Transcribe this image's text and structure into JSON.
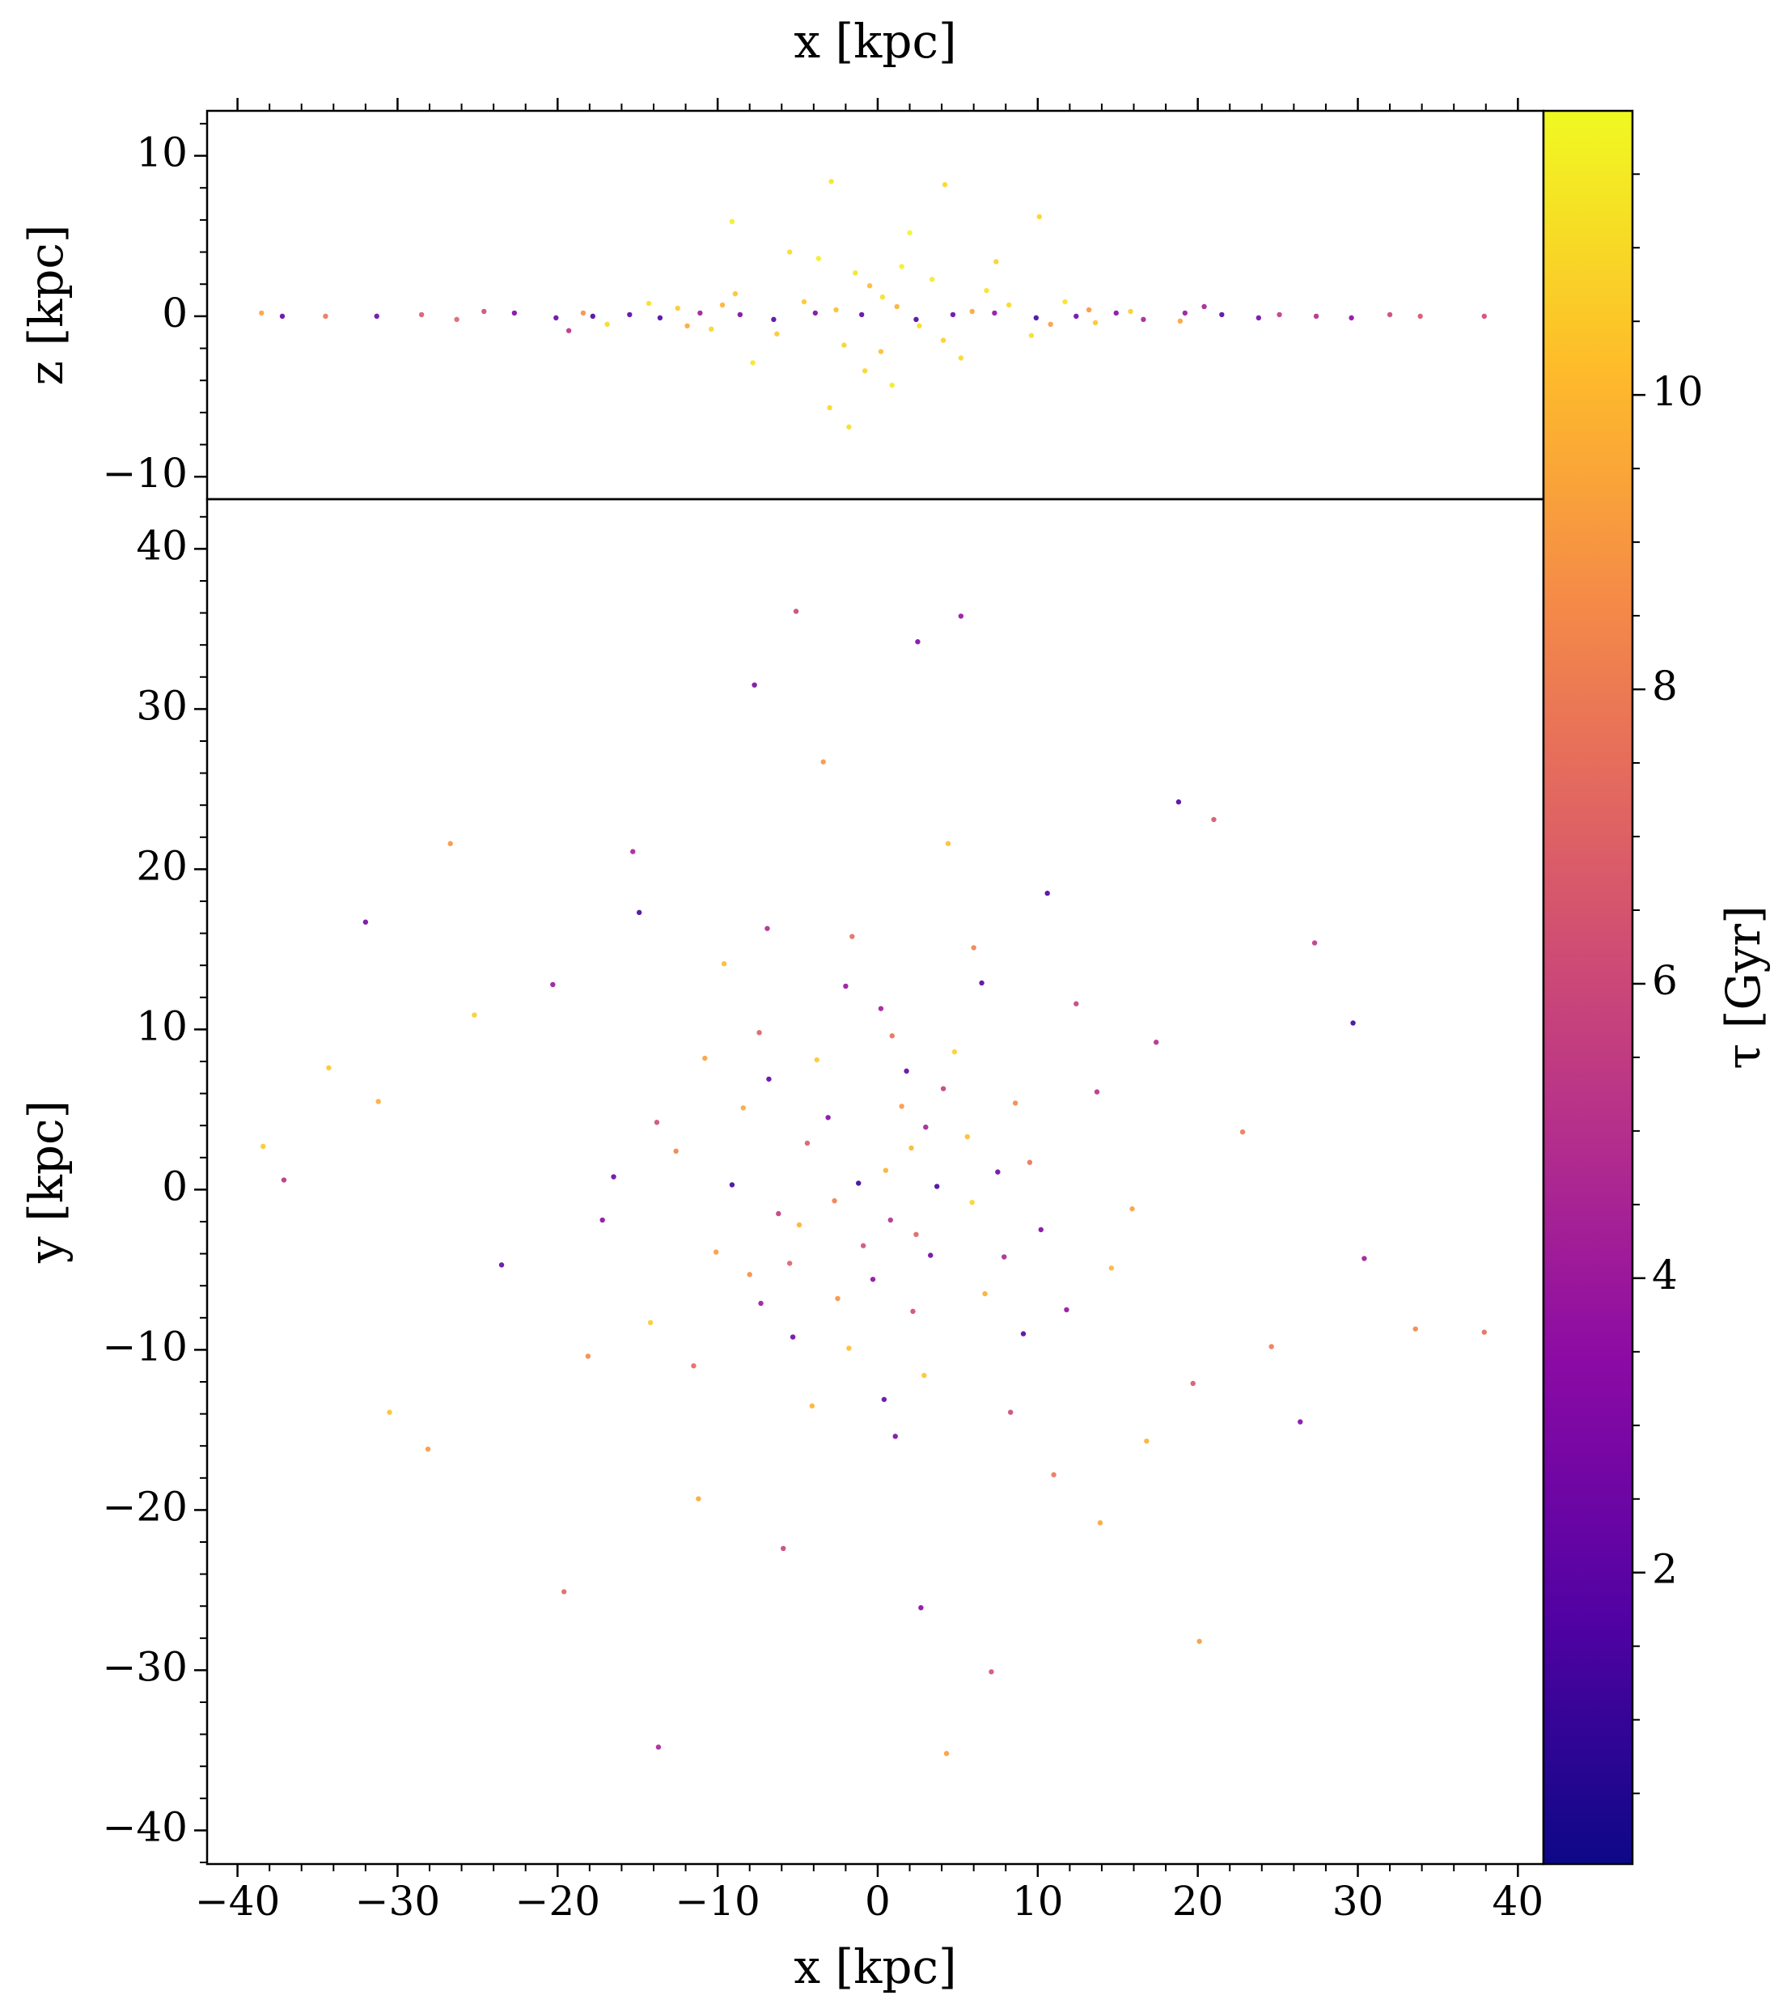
{
  "chart_data": [
    {
      "type": "scatter",
      "xlabel": "x [kpc]",
      "ylabel": "z [kpc]",
      "xlim": [
        -41.9,
        41.6
      ],
      "ylim": [
        -11.4,
        12.8
      ],
      "xticks": [
        -40,
        -30,
        -20,
        -10,
        0,
        10,
        20,
        30,
        40
      ],
      "xminorticks": [
        -38,
        -36,
        -34,
        -32,
        -28,
        -26,
        -24,
        -22,
        -18,
        -16,
        -14,
        -12,
        -8,
        -6,
        -4,
        -2,
        2,
        4,
        6,
        8,
        12,
        14,
        16,
        18,
        22,
        24,
        26,
        28,
        32,
        34,
        36,
        38
      ],
      "yticks": [
        {
          "value": -10,
          "label": "−10"
        },
        0,
        10
      ],
      "yminorticks": [
        -8,
        -6,
        -4,
        -2,
        2,
        4,
        6,
        8,
        12
      ],
      "x": [
        0.3,
        -2.1,
        3.4,
        -4.6,
        5.2,
        1.5,
        -0.8,
        6.8,
        -6.3,
        2.6,
        -1.4,
        4.1,
        -3.7,
        8.2,
        -8.9,
        9.6,
        -10.4,
        11.7,
        -12.5,
        0.9,
        -5.5,
        2.0,
        -3.0,
        7.4,
        -7.8,
        13.6,
        -14.3,
        15.8,
        -16.9,
        0.2,
        -2.6,
        1.2,
        -0.5,
        5.9,
        -9.7,
        10.8,
        -11.9,
        13.2,
        -18.4,
        18.9,
        -1.0,
        2.4,
        -3.9,
        4.7,
        -6.5,
        7.3,
        -8.6,
        9.9,
        -11.1,
        12.4,
        -13.6,
        14.9,
        -15.5,
        16.6,
        -17.8,
        19.2,
        -20.1,
        21.5,
        -22.7,
        23.8,
        -24.6,
        25.1,
        -26.3,
        27.4,
        -28.5,
        29.6,
        -31.3,
        32.0,
        -34.5,
        33.9,
        -37.2,
        37.9,
        -38.5,
        -19.3,
        20.4,
        -2.9,
        4.2,
        -1.8,
        10.1,
        -9.1
      ],
      "y": [
        1.2,
        -1.8,
        2.3,
        0.9,
        -2.6,
        3.1,
        -3.4,
        1.6,
        -1.1,
        -0.6,
        2.7,
        -1.5,
        3.6,
        0.7,
        1.4,
        -1.2,
        -0.8,
        0.9,
        0.5,
        -4.3,
        4.0,
        5.2,
        -5.7,
        3.4,
        -2.9,
        -0.4,
        0.8,
        0.3,
        -0.5,
        -2.2,
        0.4,
        0.6,
        1.9,
        0.3,
        0.7,
        -0.5,
        -0.6,
        0.4,
        0.2,
        -0.3,
        0.1,
        -0.2,
        0.2,
        0.1,
        -0.2,
        0.2,
        0.1,
        -0.1,
        0.2,
        0.0,
        -0.1,
        0.2,
        0.1,
        -0.2,
        0.0,
        0.2,
        -0.1,
        0.1,
        0.2,
        -0.1,
        0.3,
        0.1,
        -0.2,
        0.0,
        0.1,
        -0.1,
        0.0,
        0.1,
        0.0,
        0.0,
        0.0,
        0.0,
        0.2,
        -0.9,
        0.6,
        8.4,
        8.2,
        -6.9,
        6.2,
        5.9
      ],
      "c": [
        11.2,
        10.8,
        11.5,
        10.5,
        11.0,
        11.7,
        10.9,
        11.3,
        10.6,
        11.1,
        11.4,
        10.7,
        11.6,
        11.0,
        10.4,
        11.2,
        10.9,
        11.3,
        10.6,
        11.5,
        11.1,
        11.8,
        11.0,
        10.8,
        11.4,
        10.5,
        11.2,
        10.7,
        11.0,
        10.3,
        10.2,
        9.8,
        10.1,
        9.5,
        9.9,
        9.2,
        9.6,
        9.0,
        8.7,
        9.4,
        2.1,
        1.5,
        3.0,
        2.4,
        1.8,
        3.6,
        2.9,
        1.3,
        4.1,
        2.6,
        1.7,
        3.3,
        2.0,
        4.4,
        1.6,
        3.9,
        2.3,
        1.9,
        3.1,
        2.7,
        6.2,
        5.4,
        7.1,
        4.8,
        6.7,
        3.4,
        2.5,
        5.9,
        7.8,
        6.4,
        2.2,
        6.0,
        9.3,
        5.1,
        4.3,
        11.3,
        11.0,
        11.2,
        10.9,
        11.6
      ]
    },
    {
      "type": "scatter",
      "xlabel": "x [kpc]",
      "ylabel": "y [kpc]",
      "xlim": [
        -41.9,
        41.6
      ],
      "ylim": [
        -42.1,
        43.1
      ],
      "xticks": [
        {
          "value": -40,
          "label": "−40"
        },
        {
          "value": -30,
          "label": "−30"
        },
        {
          "value": -20,
          "label": "−20"
        },
        {
          "value": -10,
          "label": "−10"
        },
        0,
        10,
        20,
        30,
        40
      ],
      "xminorticks": [
        -38,
        -36,
        -34,
        -32,
        -28,
        -26,
        -24,
        -22,
        -18,
        -16,
        -14,
        -12,
        -8,
        -6,
        -4,
        -2,
        2,
        4,
        6,
        8,
        12,
        14,
        16,
        18,
        22,
        24,
        26,
        28,
        32,
        34,
        36,
        38
      ],
      "yticks": [
        {
          "value": -40,
          "label": "−40"
        },
        {
          "value": -30,
          "label": "−30"
        },
        {
          "value": -20,
          "label": "−20"
        },
        {
          "value": -10,
          "label": "−10"
        },
        0,
        10,
        20,
        30,
        40
      ],
      "yminorticks": [
        -42,
        -38,
        -36,
        -34,
        -32,
        -28,
        -26,
        -24,
        -22,
        -18,
        -16,
        -14,
        -12,
        -8,
        -6,
        -4,
        -2,
        2,
        4,
        6,
        8,
        12,
        14,
        16,
        18,
        22,
        24,
        26,
        28,
        32,
        34,
        36,
        38,
        42
      ],
      "x": [
        0.5,
        -3.1,
        2.4,
        5.6,
        -6.2,
        1.8,
        -2.5,
        7.9,
        -8.4,
        3.7,
        -0.9,
        4.8,
        -5.3,
        9.5,
        -10.1,
        0.2,
        2.9,
        -7.4,
        11.8,
        -12.6,
        6.5,
        -4.1,
        13.7,
        -14.2,
        1.1,
        -1.6,
        15.9,
        -16.5,
        8.3,
        -9.6,
        17.4,
        -18.1,
        10.6,
        -11.2,
        19.7,
        -20.3,
        4.4,
        -5.9,
        22.8,
        -23.5,
        13.9,
        -15.3,
        24.6,
        -25.2,
        2.7,
        -3.4,
        27.3,
        -28.1,
        18.8,
        -19.6,
        30.4,
        -31.2,
        7.1,
        -7.7,
        33.6,
        -34.3,
        5.2,
        4.3,
        -37.1,
        37.9,
        -1.2,
        0.8,
        2.1,
        -2.7,
        3.3,
        -4.4,
        1.5,
        -0.3,
        5.9,
        -5.5,
        4.1,
        -6.8,
        6.7,
        -7.3,
        8.6,
        -9.1,
        0.9,
        -1.8,
        10.2,
        -10.8,
        2.2,
        -3.8,
        7.5,
        -8.0,
        3.0,
        -4.9,
        9.1,
        -11.5,
        12.4,
        -2.0,
        14.6,
        -13.8,
        0.4,
        6.0,
        -6.9,
        16.8,
        -17.2,
        11.0,
        -14.9,
        20.1,
        -32.0,
        -26.7,
        21.0,
        26.4,
        -30.5,
        29.7,
        -13.7,
        2.5,
        -5.1,
        -38.4
      ],
      "y": [
        1.2,
        4.5,
        -2.8,
        3.3,
        -1.5,
        7.4,
        -6.8,
        -4.2,
        5.1,
        0.2,
        -3.5,
        8.6,
        -9.2,
        1.7,
        -3.9,
        11.3,
        -11.6,
        9.8,
        -7.5,
        2.4,
        12.9,
        -13.5,
        6.1,
        -8.3,
        -15.4,
        15.8,
        -1.2,
        0.8,
        -13.9,
        14.1,
        9.2,
        -10.4,
        18.5,
        -19.3,
        -12.1,
        12.8,
        21.6,
        -22.4,
        3.6,
        -4.7,
        -20.8,
        21.1,
        -9.8,
        10.9,
        -26.1,
        26.7,
        15.4,
        -16.2,
        24.2,
        -25.1,
        -4.3,
        5.5,
        -30.1,
        31.5,
        -8.7,
        7.6,
        35.8,
        -35.2,
        0.6,
        -8.9,
        0.4,
        -1.9,
        2.6,
        -0.7,
        -4.1,
        2.9,
        5.2,
        -5.6,
        -0.8,
        -4.6,
        6.3,
        6.9,
        -6.5,
        -7.1,
        5.4,
        0.3,
        9.6,
        -9.9,
        -2.5,
        8.2,
        -7.6,
        8.1,
        1.1,
        -5.3,
        3.9,
        -2.2,
        -9.0,
        -11.0,
        11.6,
        12.7,
        -4.9,
        4.2,
        -13.1,
        15.1,
        16.3,
        -15.7,
        -1.9,
        -17.8,
        17.3,
        -28.2,
        16.7,
        21.6,
        23.1,
        -14.5,
        -13.9,
        10.4,
        -34.8,
        34.2,
        36.1,
        2.7
      ],
      "c": [
        9.8,
        3.2,
        7.1,
        10.2,
        5.5,
        2.1,
        8.8,
        4.6,
        9.5,
        1.4,
        6.3,
        10.8,
        2.7,
        7.7,
        9.1,
        4.2,
        10.4,
        6.9,
        3.6,
        8.3,
        1.9,
        9.9,
        5.1,
        10.6,
        3.0,
        7.4,
        9.3,
        2.4,
        6.0,
        10.1,
        4.8,
        8.6,
        1.7,
        9.6,
        6.6,
        3.9,
        10.3,
        5.8,
        8.0,
        2.2,
        9.4,
        4.4,
        7.9,
        10.7,
        3.3,
        8.9,
        5.3,
        9.0,
        1.6,
        7.2,
        4.1,
        9.7,
        6.4,
        2.9,
        8.4,
        10.5,
        3.7,
        9.2,
        5.0,
        7.5,
        1.1,
        4.9,
        10.0,
        8.1,
        2.5,
        6.8,
        9.0,
        3.5,
        10.9,
        7.0,
        5.6,
        2.0,
        9.7,
        4.0,
        8.5,
        1.3,
        7.6,
        10.2,
        3.1,
        9.3,
        6.1,
        10.6,
        2.6,
        8.7,
        4.3,
        9.9,
        1.8,
        7.3,
        5.7,
        3.8,
        10.0,
        6.2,
        2.3,
        8.2,
        4.7,
        9.8,
        3.4,
        7.8,
        1.5,
        9.1,
        2.8,
        8.9,
        6.5,
        3.2,
        10.3,
        1.2,
        4.5,
        3.0,
        5.9,
        10.5
      ],
      "colorbar": {
        "label": "τ [Gyr]",
        "clim": [
          0.02,
          11.93
        ],
        "ticks": [
          2,
          4,
          6,
          8,
          10
        ],
        "minorticks": [
          0.5,
          1,
          1.5,
          2.5,
          3,
          3.5,
          4.5,
          5,
          5.5,
          6.5,
          7,
          7.5,
          8.5,
          9,
          9.5,
          10.5,
          11,
          11.5
        ],
        "colors": [
          "#0d0887",
          "#5302a3",
          "#8b0aa5",
          "#b83289",
          "#db5c68",
          "#f48849",
          "#febd2a",
          "#f0f921"
        ]
      }
    }
  ]
}
